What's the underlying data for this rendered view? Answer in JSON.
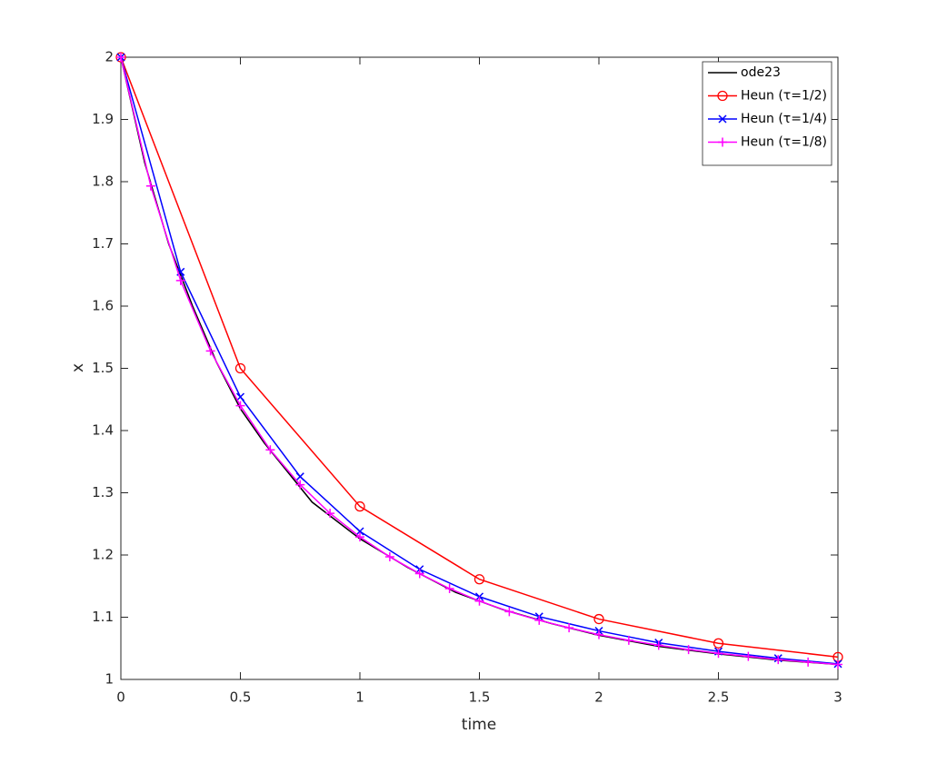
{
  "chart_data": {
    "type": "line",
    "xlabel": "time",
    "ylabel": "x",
    "xlim": [
      0,
      3
    ],
    "ylim": [
      1,
      2
    ],
    "xticks": [
      0,
      0.5,
      1,
      1.5,
      2,
      2.5,
      3
    ],
    "yticks": [
      1,
      1.1,
      1.2,
      1.3,
      1.4,
      1.5,
      1.6,
      1.7,
      1.8,
      1.9,
      2
    ],
    "grid": false,
    "legend": "upper right",
    "series": [
      {
        "name": "ode23",
        "color": "#000000",
        "marker": "none",
        "x": [
          0,
          0.1,
          0.2,
          0.3,
          0.4,
          0.5,
          0.6,
          0.8,
          1,
          1.2,
          1.4,
          1.6,
          1.8,
          2,
          2.25,
          2.5,
          2.75,
          3
        ],
        "values": [
          2,
          1.83,
          1.7,
          1.6,
          1.51,
          1.435,
          1.38,
          1.285,
          1.226,
          1.18,
          1.14,
          1.112,
          1.09,
          1.071,
          1.053,
          1.041,
          1.031,
          1.024
        ]
      },
      {
        "name": "Heun (τ=1/2)",
        "color": "#ff0000",
        "marker": "o",
        "x": [
          0,
          0.5,
          1,
          1.5,
          2,
          2.5,
          3
        ],
        "values": [
          2,
          1.5,
          1.278,
          1.161,
          1.097,
          1.058,
          1.036
        ]
      },
      {
        "name": "Heun (τ=1/4)",
        "color": "#0000ff",
        "marker": "x",
        "x": [
          0,
          0.25,
          0.5,
          0.75,
          1,
          1.25,
          1.5,
          1.75,
          2,
          2.25,
          2.5,
          2.75,
          3
        ],
        "values": [
          2,
          1.655,
          1.454,
          1.326,
          1.238,
          1.177,
          1.133,
          1.101,
          1.078,
          1.059,
          1.045,
          1.034,
          1.025
        ]
      },
      {
        "name": "Heun (τ=1/8)",
        "color": "#ff00ff",
        "marker": "+",
        "x": [
          0,
          0.125,
          0.25,
          0.375,
          0.5,
          0.625,
          0.75,
          0.875,
          1,
          1.125,
          1.25,
          1.375,
          1.5,
          1.625,
          1.75,
          1.875,
          2,
          2.125,
          2.25,
          2.375,
          2.5,
          2.625,
          2.75,
          2.875,
          3
        ],
        "values": [
          2,
          1.793,
          1.641,
          1.528,
          1.44,
          1.369,
          1.313,
          1.267,
          1.229,
          1.197,
          1.17,
          1.146,
          1.126,
          1.109,
          1.095,
          1.083,
          1.072,
          1.063,
          1.055,
          1.048,
          1.042,
          1.037,
          1.032,
          1.028,
          1.024
        ]
      }
    ]
  }
}
